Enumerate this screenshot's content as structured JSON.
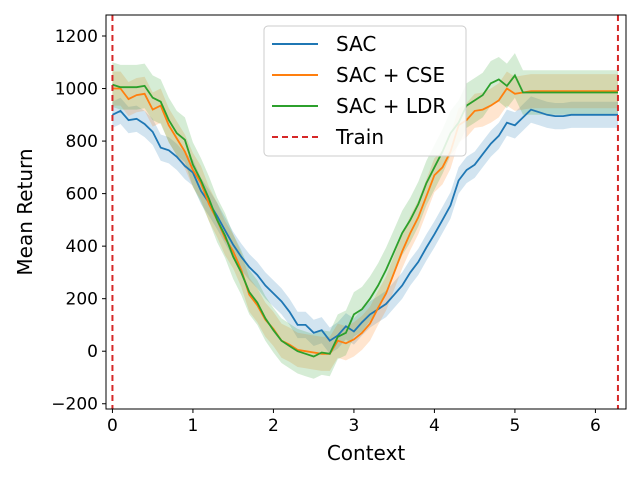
{
  "chart_data": {
    "type": "line",
    "title": "",
    "xlabel": "Context",
    "ylabel": "Mean Return",
    "xlim": [
      -0.08,
      6.38
    ],
    "ylim": [
      -220,
      1280
    ],
    "xticks": [
      0,
      1,
      2,
      3,
      4,
      5,
      6
    ],
    "yticks": [
      -200,
      0,
      200,
      400,
      600,
      800,
      1000,
      1200
    ],
    "legend_position": "top-center",
    "grid": false,
    "x": [
      0,
      0.1,
      0.2,
      0.3,
      0.4,
      0.5,
      0.6,
      0.7,
      0.8,
      0.9,
      1.0,
      1.1,
      1.2,
      1.3,
      1.4,
      1.5,
      1.6,
      1.7,
      1.8,
      1.9,
      2.0,
      2.1,
      2.2,
      2.3,
      2.4,
      2.5,
      2.6,
      2.7,
      2.8,
      2.9,
      3.0,
      3.1,
      3.2,
      3.3,
      3.4,
      3.5,
      3.6,
      3.7,
      3.8,
      3.9,
      4.0,
      4.1,
      4.2,
      4.3,
      4.4,
      4.5,
      4.6,
      4.7,
      4.8,
      4.9,
      5.0,
      5.1,
      5.2,
      5.3,
      5.4,
      5.5,
      5.6,
      5.7,
      5.8,
      5.9,
      6.0,
      6.1,
      6.2,
      6.28
    ],
    "series": [
      {
        "name": "SAC",
        "color": "#1f77b4",
        "values": [
          900,
          915,
          880,
          885,
          865,
          835,
          775,
          765,
          740,
          705,
          680,
          610,
          565,
          515,
          460,
          405,
          360,
          320,
          290,
          250,
          220,
          190,
          150,
          100,
          100,
          70,
          80,
          40,
          60,
          95,
          75,
          110,
          140,
          160,
          180,
          215,
          250,
          300,
          340,
          395,
          445,
          500,
          555,
          650,
          690,
          710,
          750,
          790,
          820,
          870,
          860,
          890,
          920,
          910,
          900,
          895,
          895,
          900,
          900,
          900,
          900,
          900,
          900,
          900
        ],
        "spread": 50
      },
      {
        "name": "SAC + CSE",
        "color": "#ff7f0e",
        "values": [
          1000,
          1000,
          960,
          975,
          980,
          920,
          935,
          860,
          810,
          760,
          690,
          640,
          560,
          500,
          430,
          380,
          310,
          215,
          175,
          120,
          85,
          40,
          25,
          5,
          0,
          -5,
          -10,
          -10,
          40,
          30,
          45,
          70,
          105,
          165,
          220,
          300,
          380,
          450,
          510,
          590,
          670,
          700,
          760,
          860,
          880,
          915,
          920,
          935,
          955,
          1000,
          980,
          985,
          990,
          990,
          990,
          990,
          990,
          990,
          990,
          990,
          990,
          990,
          990,
          990
        ],
        "spread": 65
      },
      {
        "name": "SAC + LDR",
        "color": "#2ca02c",
        "values": [
          1015,
          1005,
          1005,
          1005,
          1010,
          965,
          950,
          880,
          830,
          805,
          710,
          650,
          580,
          500,
          440,
          360,
          300,
          225,
          185,
          125,
          80,
          40,
          20,
          0,
          -10,
          -20,
          -5,
          -10,
          55,
          70,
          140,
          160,
          200,
          250,
          310,
          380,
          450,
          500,
          560,
          640,
          700,
          760,
          830,
          870,
          935,
          955,
          975,
          1020,
          1035,
          1010,
          1050,
          985,
          985,
          985,
          985,
          985,
          985,
          985,
          985,
          985,
          985,
          985,
          985,
          985
        ],
        "spread": 85
      }
    ],
    "train_lines": {
      "name": "Train",
      "color": "#d62728",
      "x": [
        0,
        6.28
      ]
    },
    "legend": [
      "SAC",
      "SAC + CSE",
      "SAC + LDR",
      "Train"
    ]
  }
}
